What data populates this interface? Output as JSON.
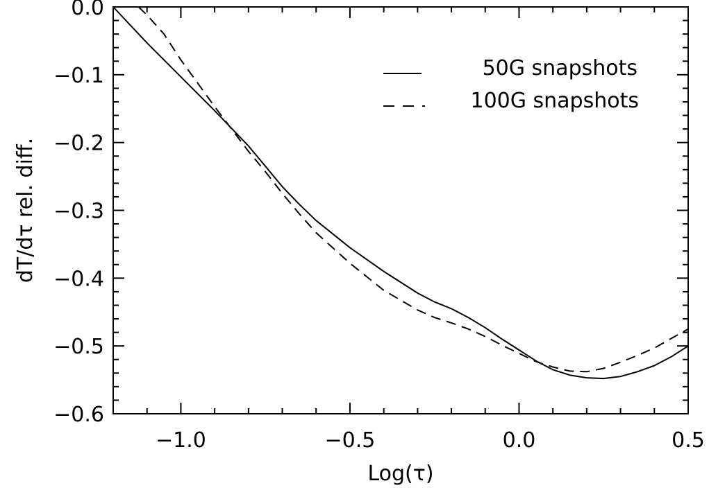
{
  "chart_data": {
    "type": "line",
    "title": "",
    "xlabel": "Log(τ)",
    "ylabel": "dT/dτ rel. diff.",
    "xlim": [
      -1.2,
      0.5
    ],
    "ylim": [
      -0.6,
      0.0
    ],
    "xticks": [
      -1.0,
      -0.5,
      0.0,
      0.5
    ],
    "xtick_labels": [
      "−1.0",
      "−0.5",
      "0.0",
      "0.5"
    ],
    "yticks": [
      0.0,
      -0.1,
      -0.2,
      -0.3,
      -0.4,
      -0.5,
      -0.6
    ],
    "ytick_labels": [
      "0.0",
      "−0.1",
      "−0.2",
      "−0.3",
      "−0.4",
      "−0.5",
      "−0.6"
    ],
    "grid": false,
    "legend_position": "top-right",
    "series": [
      {
        "name": "50G snapshots",
        "style": "solid",
        "color": "#000000",
        "x": [
          -1.2,
          -1.1,
          -1.0,
          -0.9,
          -0.8,
          -0.75,
          -0.7,
          -0.65,
          -0.6,
          -0.5,
          -0.4,
          -0.3,
          -0.25,
          -0.2,
          -0.15,
          -0.1,
          -0.05,
          0.0,
          0.05,
          0.1,
          0.15,
          0.2,
          0.25,
          0.3,
          0.35,
          0.4,
          0.45,
          0.5
        ],
        "y": [
          0.0,
          -0.053,
          -0.103,
          -0.153,
          -0.205,
          -0.235,
          -0.265,
          -0.291,
          -0.315,
          -0.355,
          -0.39,
          -0.422,
          -0.435,
          -0.445,
          -0.458,
          -0.473,
          -0.49,
          -0.506,
          -0.522,
          -0.535,
          -0.543,
          -0.547,
          -0.548,
          -0.545,
          -0.538,
          -0.529,
          -0.516,
          -0.5
        ]
      },
      {
        "name": "100G snapshots",
        "style": "dashed",
        "color": "#000000",
        "x": [
          -1.125,
          -1.1,
          -1.05,
          -1.0,
          -0.9,
          -0.8,
          -0.75,
          -0.7,
          -0.65,
          -0.6,
          -0.5,
          -0.4,
          -0.3,
          -0.25,
          -0.2,
          -0.15,
          -0.1,
          -0.05,
          0.0,
          0.05,
          0.1,
          0.15,
          0.2,
          0.25,
          0.3,
          0.35,
          0.4,
          0.45,
          0.5
        ],
        "y": [
          0.0,
          -0.012,
          -0.04,
          -0.078,
          -0.147,
          -0.213,
          -0.243,
          -0.275,
          -0.305,
          -0.333,
          -0.378,
          -0.418,
          -0.447,
          -0.458,
          -0.466,
          -0.475,
          -0.486,
          -0.499,
          -0.511,
          -0.523,
          -0.531,
          -0.537,
          -0.538,
          -0.533,
          -0.524,
          -0.514,
          -0.503,
          -0.489,
          -0.475
        ]
      }
    ]
  }
}
